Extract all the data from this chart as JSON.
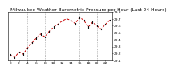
{
  "title": "Milwaukee Weather Barometric Pressure per Hour (Last 24 Hours)",
  "hours": [
    0,
    1,
    2,
    3,
    4,
    5,
    6,
    7,
    8,
    9,
    10,
    11,
    12,
    13,
    14,
    15,
    16,
    17,
    18,
    19,
    20,
    21,
    22,
    23
  ],
  "pressure": [
    29.18,
    29.14,
    29.22,
    29.19,
    29.28,
    29.35,
    29.42,
    29.48,
    29.44,
    29.52,
    29.58,
    29.62,
    29.67,
    29.7,
    29.68,
    29.63,
    29.72,
    29.68,
    29.58,
    29.65,
    29.6,
    29.55,
    29.62,
    29.68
  ],
  "line_color": "#cc0000",
  "marker_color": "#111111",
  "bg_color": "#ffffff",
  "grid_color": "#888888",
  "ylim": [
    29.1,
    29.8
  ],
  "ytick_labels": [
    "29.1",
    "29.2",
    "29.3",
    "29.4",
    "29.5",
    "29.6",
    "29.7",
    "29.8"
  ],
  "ytick_vals": [
    29.1,
    29.2,
    29.3,
    29.4,
    29.5,
    29.6,
    29.7,
    29.8
  ],
  "xtick_locs": [
    0,
    2,
    4,
    6,
    8,
    10,
    12,
    14,
    16,
    18,
    20,
    22
  ],
  "xtick_labels": [
    "0",
    "2",
    "4",
    "6",
    "8",
    "10",
    "12",
    "14",
    "16",
    "18",
    "20",
    "22"
  ],
  "vgrid_locs": [
    4,
    8,
    12,
    16,
    20
  ],
  "title_fontsize": 4.2,
  "tick_fontsize": 3.2,
  "line_width": 0.7,
  "marker_size": 3.0
}
